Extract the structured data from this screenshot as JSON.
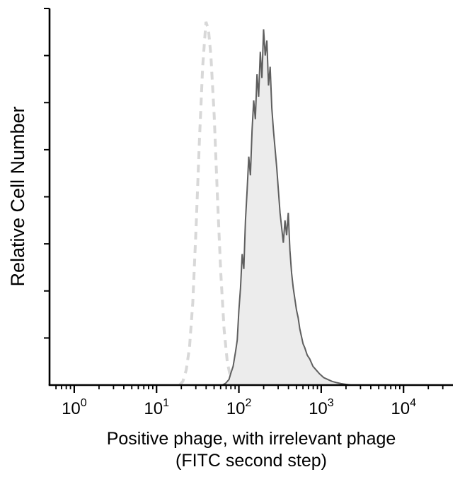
{
  "chart_data": {
    "type": "area",
    "subtype": "flow-cytometry-histogram",
    "title": "",
    "ylabel": "Relative Cell Number",
    "xlabel_line1": "Positive phage, with irrelevant phage",
    "xlabel_line2": "(FITC second step)",
    "x_scale": "log10",
    "x_tick_base": "10",
    "x_tick_exponents": [
      0,
      1,
      2,
      3,
      4
    ],
    "x_range_log": [
      -0.3,
      4.6
    ],
    "y_range": [
      0,
      1.05
    ],
    "y_axis_numeric_labels": false,
    "y_minor_tick_count": 8,
    "grid": false,
    "legend": "none",
    "colors": {
      "axis": "#000000",
      "control_curve": "#d8d8d8",
      "sample_stroke": "#5f5f5f",
      "sample_fill": "#ececec",
      "text": "#000000"
    },
    "series": [
      {
        "name": "irrelevant-phage-control",
        "style": "dashed",
        "color": "#d8d8d8",
        "fill": "none",
        "peak_x_approx": 40,
        "points": [
          [
            1.28,
            0.0
          ],
          [
            1.32,
            0.01
          ],
          [
            1.36,
            0.04
          ],
          [
            1.4,
            0.1
          ],
          [
            1.44,
            0.22
          ],
          [
            1.48,
            0.42
          ],
          [
            1.52,
            0.65
          ],
          [
            1.56,
            0.85
          ],
          [
            1.6,
            0.97
          ],
          [
            1.63,
            0.95
          ],
          [
            1.66,
            0.88
          ],
          [
            1.7,
            0.72
          ],
          [
            1.74,
            0.5
          ],
          [
            1.78,
            0.3
          ],
          [
            1.82,
            0.15
          ],
          [
            1.86,
            0.06
          ],
          [
            1.9,
            0.02
          ],
          [
            1.94,
            0.0
          ]
        ]
      },
      {
        "name": "positive-phage-stained",
        "style": "solid-filled",
        "color": "#5f5f5f",
        "fill": "#ececec",
        "peak_x_approx": 200,
        "points": [
          [
            1.8,
            0.0
          ],
          [
            1.84,
            0.005
          ],
          [
            1.88,
            0.015
          ],
          [
            1.9,
            0.03
          ],
          [
            1.93,
            0.05
          ],
          [
            1.96,
            0.09
          ],
          [
            1.98,
            0.12
          ],
          [
            2.0,
            0.2
          ],
          [
            2.02,
            0.26
          ],
          [
            2.04,
            0.35
          ],
          [
            2.06,
            0.31
          ],
          [
            2.08,
            0.44
          ],
          [
            2.1,
            0.52
          ],
          [
            2.12,
            0.61
          ],
          [
            2.14,
            0.56
          ],
          [
            2.16,
            0.68
          ],
          [
            2.18,
            0.76
          ],
          [
            2.2,
            0.71
          ],
          [
            2.22,
            0.83
          ],
          [
            2.24,
            0.77
          ],
          [
            2.26,
            0.89
          ],
          [
            2.28,
            0.82
          ],
          [
            2.3,
            0.95
          ],
          [
            2.32,
            0.88
          ],
          [
            2.34,
            0.92
          ],
          [
            2.36,
            0.8
          ],
          [
            2.38,
            0.85
          ],
          [
            2.4,
            0.74
          ],
          [
            2.42,
            0.68
          ],
          [
            2.44,
            0.63
          ],
          [
            2.46,
            0.58
          ],
          [
            2.48,
            0.52
          ],
          [
            2.5,
            0.46
          ],
          [
            2.52,
            0.42
          ],
          [
            2.54,
            0.38
          ],
          [
            2.56,
            0.44
          ],
          [
            2.58,
            0.4
          ],
          [
            2.6,
            0.46
          ],
          [
            2.62,
            0.36
          ],
          [
            2.64,
            0.3
          ],
          [
            2.66,
            0.26
          ],
          [
            2.68,
            0.23
          ],
          [
            2.7,
            0.2
          ],
          [
            2.72,
            0.18
          ],
          [
            2.74,
            0.15
          ],
          [
            2.76,
            0.13
          ],
          [
            2.78,
            0.11
          ],
          [
            2.8,
            0.1
          ],
          [
            2.83,
            0.08
          ],
          [
            2.86,
            0.07
          ],
          [
            2.9,
            0.05
          ],
          [
            2.94,
            0.04
          ],
          [
            2.98,
            0.03
          ],
          [
            3.03,
            0.02
          ],
          [
            3.08,
            0.015
          ],
          [
            3.13,
            0.01
          ],
          [
            3.18,
            0.007
          ],
          [
            3.24,
            0.004
          ],
          [
            3.3,
            0.002
          ],
          [
            3.36,
            0.0
          ]
        ]
      }
    ]
  }
}
